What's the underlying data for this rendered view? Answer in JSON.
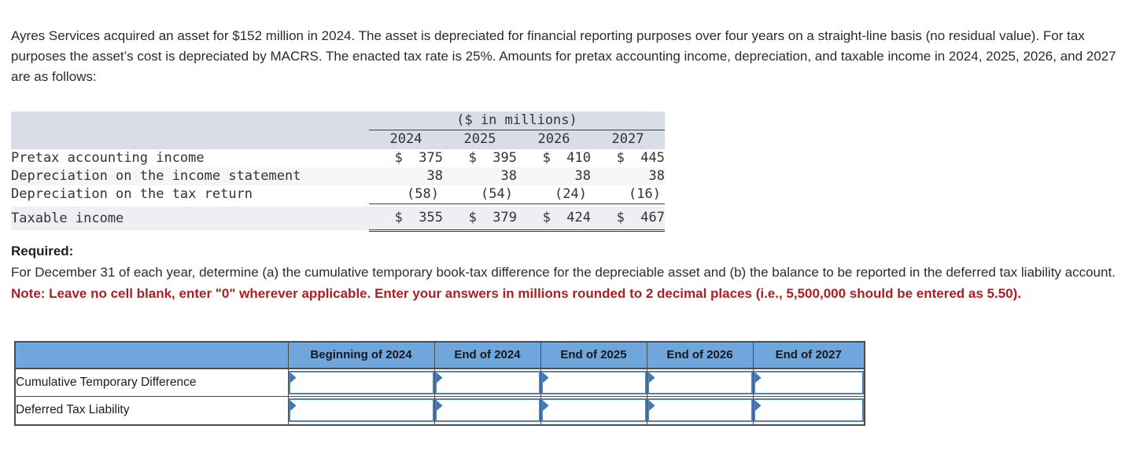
{
  "intro_text": "Ayres Services acquired an asset for $152 million in 2024. The asset is depreciated for financial reporting purposes over four years on a straight-line basis (no residual value). For tax purposes the asset’s cost is depreciated by MACRS. The enacted tax rate is 25%. Amounts for pretax accounting income, depreciation, and taxable income in 2024, 2025, 2026, and 2027 are as follows:",
  "exhibit": {
    "units_header": "($ in millions)",
    "years": [
      "2024",
      "2025",
      "2026",
      "2027"
    ],
    "rows": [
      {
        "label": "Pretax accounting income",
        "values": [
          "$  375",
          "$  395",
          "$  410",
          "$  445"
        ]
      },
      {
        "label": "Depreciation on the income statement",
        "values": [
          "38",
          "38",
          "38",
          "38"
        ]
      },
      {
        "label": "Depreciation on the tax return",
        "values": [
          "(58)",
          "(54)",
          "(24)",
          "(16)"
        ]
      },
      {
        "label": "Taxable income",
        "values": [
          "$  355",
          "$  379",
          "$  424",
          "$  467"
        ]
      }
    ]
  },
  "required": {
    "heading": "Required:",
    "body": "For December 31 of each year, determine (a) the cumulative temporary book-tax difference for the depreciable asset and (b) the balance to be reported in the deferred tax liability account.",
    "note": "Note: Leave no cell blank, enter \"0\" wherever applicable. Enter your answers in millions rounded to 2 decimal places (i.e., 5,500,000 should be entered as 5.50)."
  },
  "answer_table": {
    "columns": [
      "Beginning of 2024",
      "End of 2024",
      "End of 2025",
      "End of 2026",
      "End of 2027"
    ],
    "rows": [
      {
        "label": "Cumulative Temporary Difference",
        "inputs": [
          "",
          "",
          "",
          "",
          ""
        ]
      },
      {
        "label": "Deferred Tax Liability",
        "inputs": [
          "",
          "",
          "",
          "",
          ""
        ]
      }
    ]
  },
  "colors": {
    "exhibit_header_band": "#d9dde8",
    "exhibit_stripe": "#f5f6f8",
    "exhibit_total_band": "#edeff2",
    "answer_header_blue": "#6fa6db",
    "input_border_blue": "#4f81bd",
    "input_flag_blue": "#3f76b4",
    "note_red": "#ac1f24"
  }
}
